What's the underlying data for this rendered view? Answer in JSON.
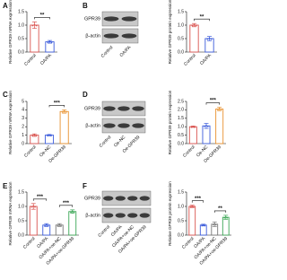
{
  "chart_data": [
    {
      "type": "bar",
      "panel": "A",
      "y_label": "Relative GPR39 mRNA expression",
      "categories": [
        "Control",
        "OA/PA"
      ],
      "values": [
        1.0,
        0.38
      ],
      "errors": [
        0.12,
        0.05
      ],
      "colors": [
        "#d9534f",
        "#3b5bdb"
      ],
      "ylim": [
        0,
        1.5
      ],
      "yticks": [
        {
          "value": 0,
          "label": "0.0"
        },
        {
          "value": 0.5,
          "label": "0.5"
        },
        {
          "value": 1,
          "label": "1.0"
        },
        {
          "value": 1.5,
          "label": "1.5"
        }
      ],
      "annotations": [
        {
          "text": "**",
          "between": [
            "Control",
            "OA/PA"
          ]
        }
      ]
    },
    {
      "type": "bar",
      "panel": "B",
      "y_label": "Relative GPR39 protein expression",
      "blot": [
        "GPR39",
        "β-actin"
      ],
      "categories": [
        "Control",
        "OA/PA"
      ],
      "values": [
        1.0,
        0.5
      ],
      "errors": [
        0.06,
        0.08
      ],
      "colors": [
        "#d9534f",
        "#3b5bdb"
      ],
      "ylim": [
        0,
        1.5
      ],
      "yticks": [
        {
          "value": 0,
          "label": "0.0"
        },
        {
          "value": 0.5,
          "label": "0.5"
        },
        {
          "value": 1,
          "label": "1.0"
        },
        {
          "value": 1.5,
          "label": "1.5"
        }
      ],
      "annotations": [
        {
          "text": "**",
          "between": [
            "Control",
            "OA/PA"
          ]
        }
      ]
    },
    {
      "type": "bar",
      "panel": "C",
      "y_label": "Relative GPR39 mRNA expression",
      "categories": [
        "Control",
        "Oe-NC",
        "Oe-GPR39"
      ],
      "values": [
        1.0,
        1.0,
        3.8
      ],
      "errors": [
        0.15,
        0.08,
        0.2
      ],
      "colors": [
        "#d9534f",
        "#3b5bdb",
        "#e8912d"
      ],
      "ylim": [
        0,
        5
      ],
      "yticks": [
        0,
        1,
        2,
        3,
        4,
        5
      ],
      "annotations": [
        {
          "text": "***",
          "between": [
            "Oe-NC",
            "Oe-GPR39"
          ]
        }
      ]
    },
    {
      "type": "bar",
      "panel": "D",
      "y_label": "Relative GPR39 protein expression",
      "blot": [
        "GPR39",
        "β-actin"
      ],
      "categories": [
        "Control",
        "Oe-NC",
        "Oe-GPR39"
      ],
      "values": [
        1.0,
        1.05,
        2.05
      ],
      "errors": [
        0.04,
        0.15,
        0.1
      ],
      "colors": [
        "#d9534f",
        "#3b5bdb",
        "#e8912d"
      ],
      "ylim": [
        0,
        2.5
      ],
      "yticks": [
        {
          "value": 0,
          "label": "0.0"
        },
        {
          "value": 0.5,
          "label": "0.5"
        },
        {
          "value": 1,
          "label": "1.0"
        },
        {
          "value": 1.5,
          "label": "1.5"
        },
        {
          "value": 2,
          "label": "2.0"
        },
        {
          "value": 2.5,
          "label": "2.5"
        }
      ],
      "annotations": [
        {
          "text": "***",
          "between": [
            "Oe-NC",
            "Oe-GPR39"
          ]
        }
      ]
    },
    {
      "type": "bar",
      "panel": "E",
      "y_label": "Relative GPR39 mRNA expression",
      "categories": [
        "Control",
        "OA/PA",
        "OA/PA+oe-NC",
        "OA/PA+oe-GPR39"
      ],
      "values": [
        1.0,
        0.35,
        0.35,
        0.82
      ],
      "errors": [
        0.1,
        0.05,
        0.05,
        0.06
      ],
      "colors": [
        "#d9534f",
        "#3b5bdb",
        "#777777",
        "#3aa655"
      ],
      "ylim": [
        0,
        1.5
      ],
      "yticks": [
        {
          "value": 0,
          "label": "0.0"
        },
        {
          "value": 0.5,
          "label": "0.5"
        },
        {
          "value": 1,
          "label": "1.0"
        },
        {
          "value": 1.5,
          "label": "1.5"
        }
      ],
      "annotations": [
        {
          "text": "***",
          "between": [
            "Control",
            "OA/PA"
          ]
        },
        {
          "text": "***",
          "between": [
            "OA/PA+oe-NC",
            "OA/PA+oe-GPR39"
          ]
        }
      ]
    },
    {
      "type": "bar",
      "panel": "F",
      "y_label": "Relative GPR39 protein expression",
      "blot": [
        "GPR39",
        "β-actin"
      ],
      "categories": [
        "Control",
        "OA/PA",
        "OA/PA+oe-NC",
        "OA/PA+oe-GPR39"
      ],
      "values": [
        1.0,
        0.35,
        0.38,
        0.62
      ],
      "errors": [
        0.04,
        0.03,
        0.08,
        0.07
      ],
      "colors": [
        "#d9534f",
        "#3b5bdb",
        "#777777",
        "#3aa655"
      ],
      "ylim": [
        0,
        1.5
      ],
      "yticks": [
        {
          "value": 0,
          "label": "0.0"
        },
        {
          "value": 0.5,
          "label": "0.5"
        },
        {
          "value": 1,
          "label": "1.0"
        },
        {
          "value": 1.5,
          "label": "1.5"
        }
      ],
      "annotations": [
        {
          "text": "***",
          "between": [
            "Control",
            "OA/PA"
          ]
        },
        {
          "text": "**",
          "between": [
            "OA/PA+oe-NC",
            "OA/PA+oe-GPR39"
          ]
        }
      ]
    }
  ]
}
